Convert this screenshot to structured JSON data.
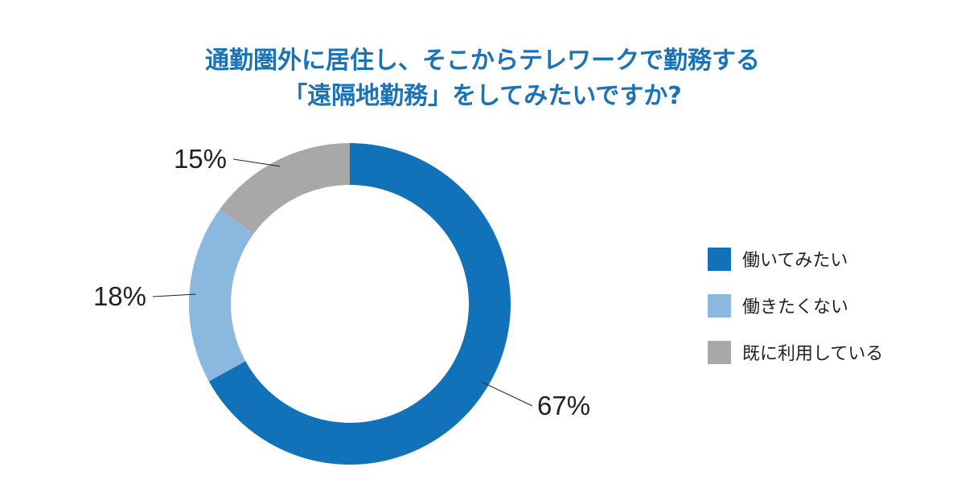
{
  "chart_data": {
    "type": "pie",
    "variant": "donut",
    "title_lines": [
      "通勤圏外に居住し、そこからテレワークで勤務する",
      "「遠隔地勤務」をしてみたいですか?"
    ],
    "series": [
      {
        "name": "働いてみたい",
        "value": 67,
        "label": "67%",
        "color": "#1171b9"
      },
      {
        "name": "働きたくない",
        "value": 18,
        "label": "18%",
        "color": "#8ab8de"
      },
      {
        "name": "既に利用している",
        "value": 15,
        "label": "15%",
        "color": "#a8a8a8"
      }
    ],
    "legend_position": "right"
  }
}
